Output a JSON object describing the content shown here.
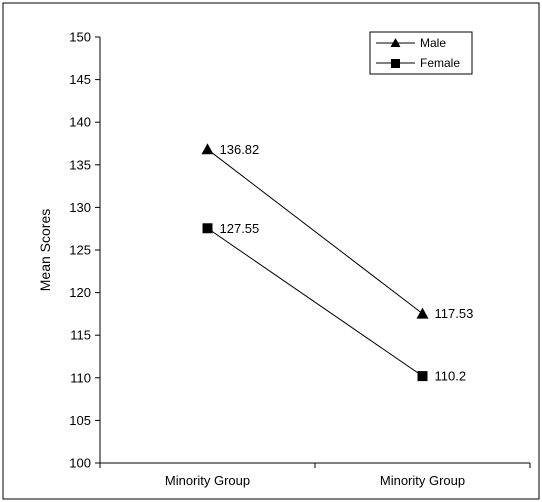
{
  "chart_data": {
    "type": "line",
    "title": "",
    "xlabel": "",
    "ylabel": "Mean Scores",
    "categories": [
      "Minority Group",
      "Minority Group"
    ],
    "ylim": [
      100,
      150
    ],
    "y_ticks": [
      100,
      105,
      110,
      115,
      120,
      125,
      130,
      135,
      140,
      145,
      150
    ],
    "grid": false,
    "legend_position": "top-right",
    "series": [
      {
        "name": "Male",
        "values": [
          136.82,
          117.53
        ],
        "marker": "triangle",
        "color": "#000000",
        "labels": [
          "136.82",
          "117.53"
        ]
      },
      {
        "name": "Female",
        "values": [
          127.55,
          110.2
        ],
        "marker": "square",
        "color": "#000000",
        "labels": [
          "127.55",
          "110.2"
        ]
      }
    ]
  }
}
